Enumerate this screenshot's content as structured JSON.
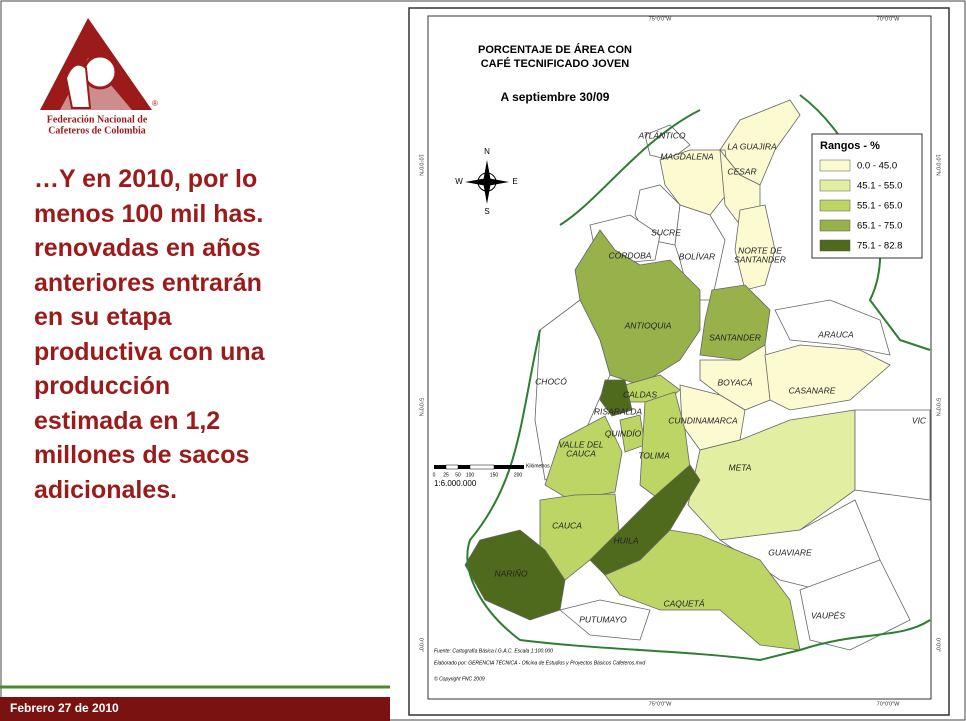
{
  "slide": {
    "logo": {
      "line1": "Federación Nacional de",
      "line2": "Cafeteros de Colombia",
      "mark": "®"
    },
    "text_lines": [
      "…Y en 2010, por lo",
      "menos 100 mil has.",
      "renovadas en años",
      "anteriores entrarán",
      "en su etapa",
      "productiva con una",
      "producción",
      "estimada en 1,2",
      "millones de sacos",
      "adicionales."
    ],
    "footer": "Febrero 27 de 2010"
  },
  "map": {
    "title_line1": "PORCENTAJE DE ÁREA CON",
    "title_line2": "CAFÉ TECNIFICADO JOVEN",
    "subtitle": "A septiembre 30/09",
    "legend": {
      "title": "Rangos - %",
      "items": [
        {
          "label": "0.0 - 45.0",
          "color": "#fbfad0"
        },
        {
          "label": "45.1 - 55.0",
          "color": "#e2eea2"
        },
        {
          "label": "55.1 - 65.0",
          "color": "#bcd565"
        },
        {
          "label": "65.1 - 75.0",
          "color": "#97b24a"
        },
        {
          "label": "75.1 - 82.8",
          "color": "#4f6a1d"
        }
      ]
    },
    "departments": [
      "LA GUAJIRA",
      "ATLÁNTICO",
      "MAGDALENA",
      "CESAR",
      "SUCRE",
      "CÓRDOBA",
      "BOLÍVAR",
      "NORTE DE",
      "SANTANDER",
      "ANTIOQUIA",
      "SANTANDER",
      "ARAUCA",
      "CHOCÓ",
      "CALDAS",
      "RISARALDA",
      "BOYACÁ",
      "CASANARE",
      "QUINDÍO",
      "CUNDINAMARCA",
      "TOLIMA",
      "VALLE DEL",
      "CAUCA",
      "META",
      "VIC",
      "CAUCA",
      "HUILA",
      "GUAVIARE",
      "NARIÑO",
      "CAQUETÁ",
      "VAUPÉS",
      "PUTUMAYO"
    ],
    "longitudes": [
      "75°0'0\"W",
      "70°0'0\"W"
    ],
    "latitudes": [
      "10°0'0\"N",
      "5°0'0\"N",
      "0°0'0\""
    ],
    "compass": {
      "n": "N",
      "s": "S",
      "e": "E",
      "w": "W"
    },
    "scale": {
      "ticks": [
        "0",
        "25",
        "50",
        "100",
        "150",
        "200"
      ],
      "unit": "Kilómetros",
      "ratio": "1:6.000.000"
    },
    "credits": [
      "Fuente: Cartografía Básica I.G.A.C. Escala 1:100.000",
      "Elaborado por: GERENCIA TÉCNICA - Oficina de Estudios y Proyectos Básicos Cafeteros.mxd",
      "© Copyright FNC 2009"
    ]
  }
}
